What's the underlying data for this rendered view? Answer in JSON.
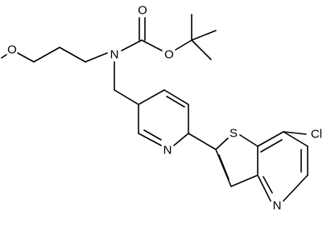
{
  "atoms": [
    {
      "label": "O"
    },
    {
      "label": "N"
    },
    {
      "label": "O"
    },
    {
      "label": "O"
    },
    {
      "label": "N"
    },
    {
      "label": "S"
    },
    {
      "label": "Cl"
    },
    {
      "label": "N"
    }
  ]
}
